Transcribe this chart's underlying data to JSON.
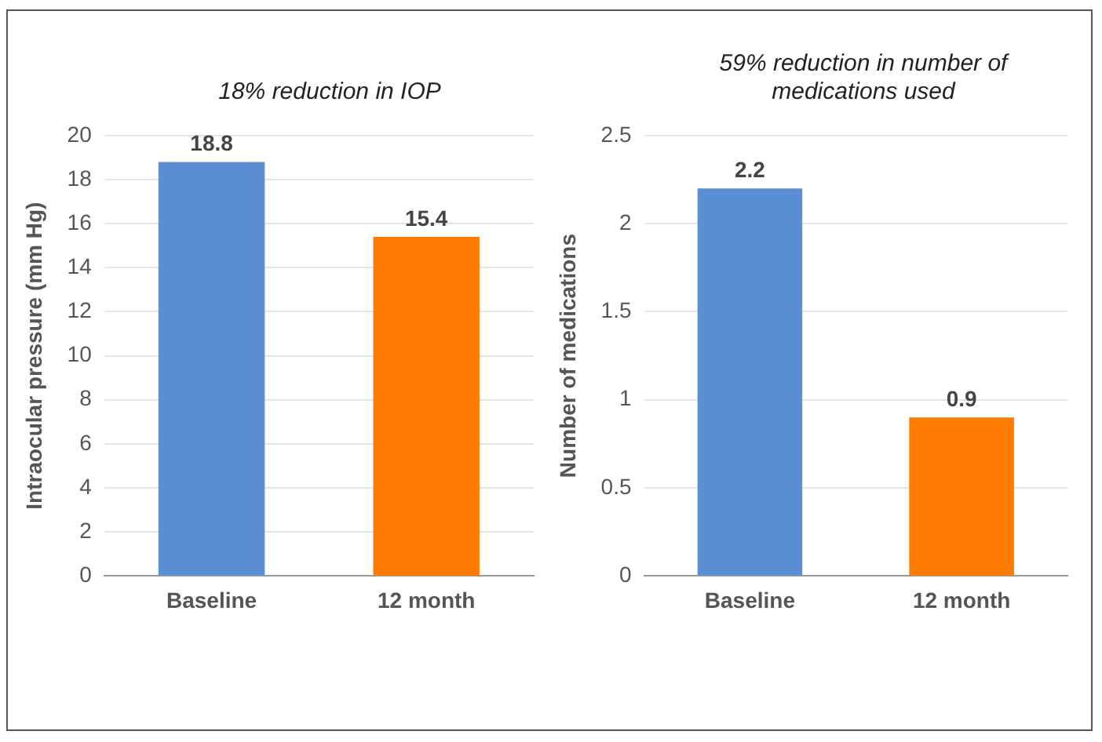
{
  "chart_data": [
    {
      "type": "bar",
      "title": "18% reduction in IOP",
      "ylabel": "Intraocular pressure (mm Hg)",
      "categories": [
        "Baseline",
        "12 month"
      ],
      "values": [
        18.8,
        15.4
      ],
      "colors": [
        "#5b8fd3",
        "#ff7c00"
      ],
      "ylim": [
        0,
        20
      ],
      "yticks": [
        0,
        2,
        4,
        6,
        8,
        10,
        12,
        14,
        16,
        18,
        20
      ],
      "grid": "y",
      "data_labels": true
    },
    {
      "type": "bar",
      "title": "59% reduction in number of medications used",
      "ylabel": "Number of medications",
      "categories": [
        "Baseline",
        "12 month"
      ],
      "values": [
        2.2,
        0.9
      ],
      "colors": [
        "#5b8fd3",
        "#ff7c00"
      ],
      "ylim": [
        0,
        2.5
      ],
      "yticks": [
        0,
        0.5,
        1,
        1.5,
        2,
        2.5
      ],
      "grid": "y",
      "data_labels": true
    }
  ]
}
